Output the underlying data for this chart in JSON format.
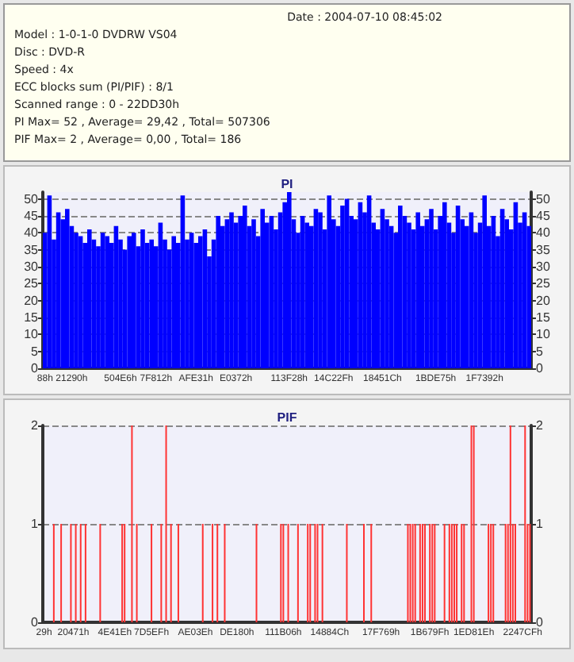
{
  "chart_data": [
    {
      "type": "other",
      "annotations": [
        "Date : 2004-07-10 08:45:02",
        "Model : 1-0-1-0 DVDRW VS04",
        "Disc : DVD-R",
        "Speed : 4x",
        "ECC blocks sum (PI/PIF) : 8/1",
        "Scanned range : 0 - 22DD30h",
        "PI Max= 52 , Average= 29,42 , Total= 507306",
        "PIF Max= 2 , Average= 0,00 , Total= 186"
      ]
    },
    {
      "type": "bar",
      "title": "PI",
      "color": "#0000ff",
      "ylim": [
        0,
        52
      ],
      "yticks": [
        0,
        5,
        10,
        15,
        20,
        25,
        30,
        35,
        40,
        45,
        50
      ],
      "y2lim": [
        0,
        52
      ],
      "y2ticks": [
        0,
        5,
        10,
        15,
        20,
        25,
        30,
        35,
        40,
        45,
        50
      ],
      "grid": "y",
      "categories": [
        "88h",
        null,
        null,
        null,
        null,
        null,
        "21290h",
        null,
        null,
        null,
        null,
        null,
        null,
        null,
        null,
        null,
        null,
        "504E6h",
        null,
        null,
        null,
        null,
        null,
        null,
        null,
        "7F812h",
        null,
        null,
        null,
        null,
        null,
        null,
        null,
        null,
        "AFE31h",
        null,
        null,
        null,
        null,
        null,
        null,
        null,
        null,
        "E0372h",
        null,
        null,
        null,
        null,
        null,
        null,
        null,
        null,
        null,
        null,
        null,
        "113F28h",
        null,
        null,
        null,
        null,
        null,
        null,
        null,
        null,
        null,
        "14C22Fh",
        null,
        null,
        null,
        null,
        null,
        null,
        null,
        null,
        null,
        null,
        "18451Ch",
        null,
        null,
        null,
        null,
        null,
        null,
        null,
        null,
        null,
        null,
        null,
        "1BDE75h",
        null,
        null,
        null,
        null,
        null,
        null,
        null,
        null,
        null,
        null,
        "1F7392h",
        null,
        null,
        null,
        null,
        null,
        null,
        null,
        null,
        null,
        null
      ],
      "values": [
        40,
        51,
        38,
        46,
        44,
        47,
        42,
        40,
        39,
        37,
        41,
        38,
        36,
        40,
        39,
        37,
        42,
        38,
        35,
        39,
        40,
        36,
        41,
        37,
        38,
        36,
        43,
        38,
        35,
        39,
        37,
        51,
        38,
        40,
        37,
        39,
        41,
        33,
        38,
        45,
        42,
        44,
        46,
        43,
        45,
        48,
        42,
        44,
        39,
        47,
        43,
        45,
        41,
        46,
        49,
        52,
        44,
        40,
        45,
        43,
        42,
        47,
        46,
        41,
        51,
        44,
        42,
        48,
        50,
        45,
        44,
        49,
        46,
        51,
        43,
        41,
        47,
        44,
        42,
        40,
        48,
        45,
        43,
        41,
        46,
        42,
        44,
        47,
        41,
        45,
        49,
        43,
        40,
        48,
        44,
        42,
        46,
        40,
        43,
        51,
        42,
        45,
        39,
        47,
        44,
        41,
        49,
        43,
        46,
        42
      ]
    },
    {
      "type": "bar",
      "title": "PIF",
      "color": "#ff3333",
      "ylim": [
        0,
        2
      ],
      "yticks": [
        0,
        1,
        2
      ],
      "y2lim": [
        0,
        2
      ],
      "y2ticks": [
        0,
        1,
        2
      ],
      "grid": "y",
      "categories": [
        "29h",
        null,
        null,
        null,
        null,
        null,
        null,
        null,
        null,
        null,
        null,
        null,
        "20471h",
        null,
        null,
        null,
        null,
        null,
        null,
        null,
        null,
        null,
        null,
        null,
        null,
        null,
        null,
        null,
        null,
        "4E41Eh",
        null,
        null,
        null,
        null,
        null,
        null,
        null,
        null,
        null,
        null,
        null,
        null,
        null,
        null,
        "7D5EFh",
        null,
        null,
        null,
        null,
        null,
        null,
        null,
        null,
        null,
        null,
        null,
        null,
        null,
        null,
        null,
        null,
        null,
        "AE03Eh",
        null,
        null,
        null,
        null,
        null,
        null,
        null,
        null,
        null,
        null,
        null,
        null,
        null,
        null,
        null,
        null,
        "DE180h",
        null,
        null,
        null,
        null,
        null,
        null,
        null,
        null,
        null,
        null,
        null,
        null,
        null,
        null,
        null,
        null,
        null,
        null,
        "111B06h",
        null,
        null,
        null,
        null,
        null,
        null,
        null,
        null,
        null,
        null,
        null,
        null,
        null,
        null,
        null,
        null,
        null,
        null,
        "14884Ch",
        null,
        null,
        null,
        null,
        null,
        null,
        null,
        null,
        null,
        null,
        null,
        null,
        null,
        null,
        null,
        null,
        null,
        null,
        null,
        null,
        "17F769h",
        null,
        null,
        null,
        null,
        null,
        null,
        null,
        null,
        null,
        null,
        null,
        null,
        null,
        null,
        null,
        null,
        null,
        null,
        null,
        "1B679Fh",
        null,
        null,
        null,
        null,
        null,
        null,
        null,
        null,
        null,
        null,
        null,
        null,
        null,
        null,
        null,
        null,
        null,
        "1ED81Eh",
        null,
        null,
        null,
        null,
        null,
        null,
        null,
        null,
        null,
        null,
        null,
        null,
        null,
        null,
        null,
        null,
        null,
        null,
        null,
        "2247CFh",
        null,
        null,
        null
      ],
      "values": [
        0,
        0,
        0,
        0,
        1,
        0,
        0,
        1,
        0,
        0,
        0,
        1,
        0,
        1,
        0,
        1,
        0,
        1,
        0,
        0,
        0,
        0,
        0,
        1,
        0,
        0,
        0,
        0,
        0,
        0,
        0,
        0,
        1,
        1,
        0,
        0,
        2,
        0,
        1,
        0,
        0,
        0,
        0,
        0,
        1,
        0,
        0,
        0,
        1,
        0,
        2,
        0,
        1,
        0,
        0,
        1,
        0,
        0,
        0,
        0,
        0,
        0,
        0,
        0,
        0,
        1,
        0,
        0,
        0,
        1,
        0,
        1,
        0,
        0,
        1,
        0,
        0,
        0,
        0,
        0,
        0,
        0,
        0,
        0,
        0,
        0,
        0,
        1,
        0,
        0,
        0,
        0,
        0,
        0,
        0,
        0,
        0,
        1,
        1,
        0,
        1,
        0,
        0,
        0,
        1,
        0,
        0,
        0,
        1,
        1,
        0,
        1,
        1,
        0,
        1,
        0,
        0,
        0,
        0,
        0,
        0,
        0,
        0,
        0,
        1,
        0,
        0,
        0,
        0,
        0,
        0,
        1,
        0,
        0,
        1,
        0,
        0,
        0,
        0,
        0,
        0,
        0,
        0,
        0,
        0,
        0,
        0,
        0,
        0,
        1,
        1,
        1,
        1,
        0,
        1,
        1,
        1,
        0,
        1,
        1,
        1,
        0,
        0,
        0,
        1,
        0,
        1,
        1,
        1,
        1,
        0,
        1,
        1,
        0,
        0,
        2,
        2,
        0,
        0,
        0,
        0,
        0,
        1,
        1,
        1,
        0,
        0,
        0,
        0,
        1,
        1,
        2,
        1,
        1,
        0,
        0,
        0,
        2,
        1,
        1
      ]
    }
  ]
}
